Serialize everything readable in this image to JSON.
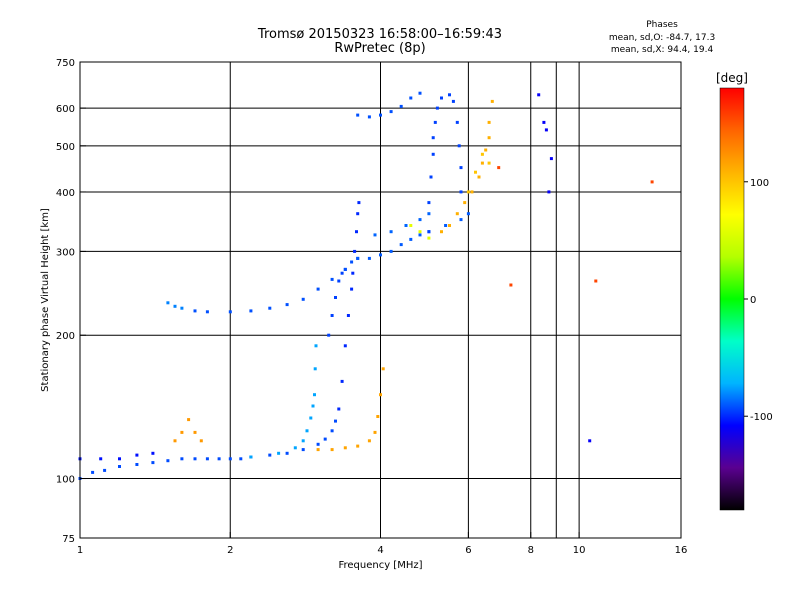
{
  "header": {
    "title_line1": "Tromsø 20150323 16:58:00–16:59:43",
    "title_line2": "RwPretec (8p)",
    "stats_title": "Phases",
    "stats_o": "mean, sd,O: -84.7, 17.3",
    "stats_x": "mean, sd,X:  94.4, 19.4"
  },
  "chart_data": {
    "type": "scatter",
    "xlabel": "Frequency [MHz]",
    "ylabel": "Stationary phase Virtual Height [km]",
    "xscale": "log",
    "yscale": "log",
    "xlim": [
      1,
      16
    ],
    "ylim": [
      75,
      750
    ],
    "xticks": [
      1,
      2,
      4,
      6,
      8,
      10,
      16
    ],
    "yticks": [
      75,
      100,
      200,
      300,
      400,
      500,
      600,
      750
    ],
    "xgrid": [
      2,
      4,
      6,
      8,
      9,
      10
    ],
    "ygrid": [
      100,
      200,
      300,
      400,
      500,
      600
    ],
    "grid": true,
    "colorbar": {
      "label": "[deg]",
      "range": [
        -180,
        180
      ],
      "ticks": [
        -100,
        0,
        100
      ],
      "colors": [
        "#000000",
        "#5a0090",
        "#0000ff",
        "#00b4ff",
        "#00ffc8",
        "#00ff00",
        "#b4ff00",
        "#ffff00",
        "#ffb400",
        "#ff6400",
        "#ff0000"
      ]
    },
    "series": [
      {
        "phase": -93,
        "points": [
          [
            1.0,
            100
          ],
          [
            1.06,
            103
          ],
          [
            1.12,
            104
          ],
          [
            1.2,
            106
          ],
          [
            1.3,
            107
          ],
          [
            1.4,
            108
          ],
          [
            1.5,
            109
          ],
          [
            1.6,
            110
          ],
          [
            1.7,
            110
          ],
          [
            1.8,
            110
          ],
          [
            1.9,
            110
          ],
          [
            2.0,
            110
          ],
          [
            2.1,
            110
          ],
          [
            2.2,
            111
          ],
          [
            2.4,
            112
          ],
          [
            2.6,
            113
          ],
          [
            2.8,
            115
          ],
          [
            3.0,
            118
          ],
          [
            3.1,
            121
          ],
          [
            3.2,
            126
          ],
          [
            3.25,
            132
          ]
        ]
      },
      {
        "phase": -105,
        "points": [
          [
            1.0,
            110
          ],
          [
            1.1,
            110
          ],
          [
            1.2,
            110
          ],
          [
            1.3,
            112
          ],
          [
            1.4,
            113
          ]
        ]
      },
      {
        "phase": -75,
        "points": [
          [
            2.2,
            111
          ],
          [
            2.5,
            113
          ],
          [
            2.7,
            116
          ],
          [
            2.8,
            120
          ],
          [
            2.85,
            126
          ],
          [
            2.9,
            134
          ],
          [
            2.93,
            142
          ],
          [
            2.95,
            150
          ],
          [
            2.96,
            170
          ],
          [
            2.97,
            190
          ]
        ]
      },
      {
        "phase": -100,
        "points": [
          [
            3.3,
            140
          ],
          [
            3.35,
            160
          ],
          [
            3.4,
            190
          ],
          [
            3.45,
            220
          ],
          [
            3.5,
            250
          ],
          [
            3.52,
            270
          ],
          [
            3.55,
            300
          ],
          [
            3.58,
            330
          ],
          [
            3.6,
            360
          ],
          [
            3.62,
            380
          ]
        ]
      },
      {
        "phase": -95,
        "points": [
          [
            3.15,
            200
          ],
          [
            3.2,
            220
          ],
          [
            3.25,
            240
          ],
          [
            3.3,
            260
          ],
          [
            3.35,
            270
          ],
          [
            3.4,
            275
          ]
        ]
      },
      {
        "phase": 115,
        "points": [
          [
            3.0,
            115
          ],
          [
            3.2,
            115
          ],
          [
            3.4,
            116
          ],
          [
            3.6,
            117
          ],
          [
            3.8,
            120
          ],
          [
            3.9,
            125
          ],
          [
            3.95,
            135
          ],
          [
            4.0,
            150
          ],
          [
            4.05,
            170
          ]
        ]
      },
      {
        "phase": 120,
        "points": [
          [
            1.55,
            120
          ],
          [
            1.6,
            125
          ],
          [
            1.65,
            133
          ],
          [
            1.7,
            125
          ],
          [
            1.75,
            120
          ]
        ]
      },
      {
        "phase": -92,
        "points": [
          [
            1.7,
            225
          ],
          [
            1.8,
            224
          ],
          [
            2.0,
            224
          ],
          [
            2.2,
            225
          ],
          [
            2.4,
            228
          ],
          [
            2.6,
            232
          ],
          [
            2.8,
            238
          ],
          [
            3.0,
            250
          ],
          [
            3.2,
            262
          ],
          [
            3.4,
            275
          ],
          [
            3.5,
            285
          ],
          [
            3.6,
            290
          ]
        ]
      },
      {
        "phase": -82,
        "points": [
          [
            1.5,
            234
          ],
          [
            1.55,
            230
          ],
          [
            1.6,
            228
          ]
        ]
      },
      {
        "phase": -90,
        "points": [
          [
            3.6,
            290
          ],
          [
            3.8,
            290
          ],
          [
            4.0,
            295
          ],
          [
            4.2,
            300
          ],
          [
            4.4,
            310
          ],
          [
            4.6,
            318
          ],
          [
            4.8,
            325
          ],
          [
            5.0,
            330
          ],
          [
            5.4,
            340
          ],
          [
            5.8,
            350
          ],
          [
            6.0,
            360
          ]
        ]
      },
      {
        "phase": -88,
        "points": [
          [
            3.9,
            325
          ],
          [
            4.2,
            330
          ],
          [
            4.5,
            340
          ],
          [
            4.8,
            350
          ],
          [
            5.0,
            360
          ]
        ]
      },
      {
        "phase": -92,
        "points": [
          [
            3.6,
            580
          ],
          [
            3.8,
            575
          ],
          [
            4.0,
            580
          ],
          [
            4.2,
            590
          ],
          [
            4.4,
            605
          ],
          [
            4.6,
            630
          ],
          [
            4.8,
            645
          ]
        ]
      },
      {
        "phase": -95,
        "points": [
          [
            5.0,
            330
          ],
          [
            5.0,
            380
          ],
          [
            5.05,
            430
          ],
          [
            5.1,
            480
          ],
          [
            5.1,
            520
          ],
          [
            5.15,
            560
          ],
          [
            5.2,
            600
          ],
          [
            5.3,
            630
          ],
          [
            5.5,
            640
          ],
          [
            5.6,
            620
          ],
          [
            5.7,
            560
          ],
          [
            5.75,
            500
          ],
          [
            5.8,
            450
          ],
          [
            5.8,
            400
          ]
        ]
      },
      {
        "phase": 110,
        "points": [
          [
            5.3,
            330
          ],
          [
            5.5,
            340
          ],
          [
            5.7,
            360
          ],
          [
            5.9,
            380
          ],
          [
            6.1,
            400
          ],
          [
            6.3,
            430
          ],
          [
            6.4,
            460
          ],
          [
            6.5,
            490
          ],
          [
            6.6,
            520
          ],
          [
            6.6,
            560
          ],
          [
            6.7,
            620
          ]
        ]
      },
      {
        "phase": 100,
        "points": [
          [
            6.0,
            400
          ],
          [
            6.2,
            440
          ],
          [
            6.4,
            480
          ],
          [
            6.6,
            460
          ]
        ]
      },
      {
        "phase": 60,
        "points": [
          [
            4.6,
            340
          ],
          [
            4.8,
            330
          ],
          [
            5.0,
            320
          ]
        ]
      },
      {
        "phase": 155,
        "points": [
          [
            6.9,
            450
          ],
          [
            7.3,
            255
          ],
          [
            10.8,
            260
          ],
          [
            14.0,
            420
          ]
        ]
      },
      {
        "phase": -110,
        "points": [
          [
            8.3,
            640
          ],
          [
            8.5,
            560
          ],
          [
            8.6,
            540
          ],
          [
            8.8,
            470
          ],
          [
            8.7,
            400
          ],
          [
            10.5,
            120
          ]
        ]
      }
    ]
  }
}
